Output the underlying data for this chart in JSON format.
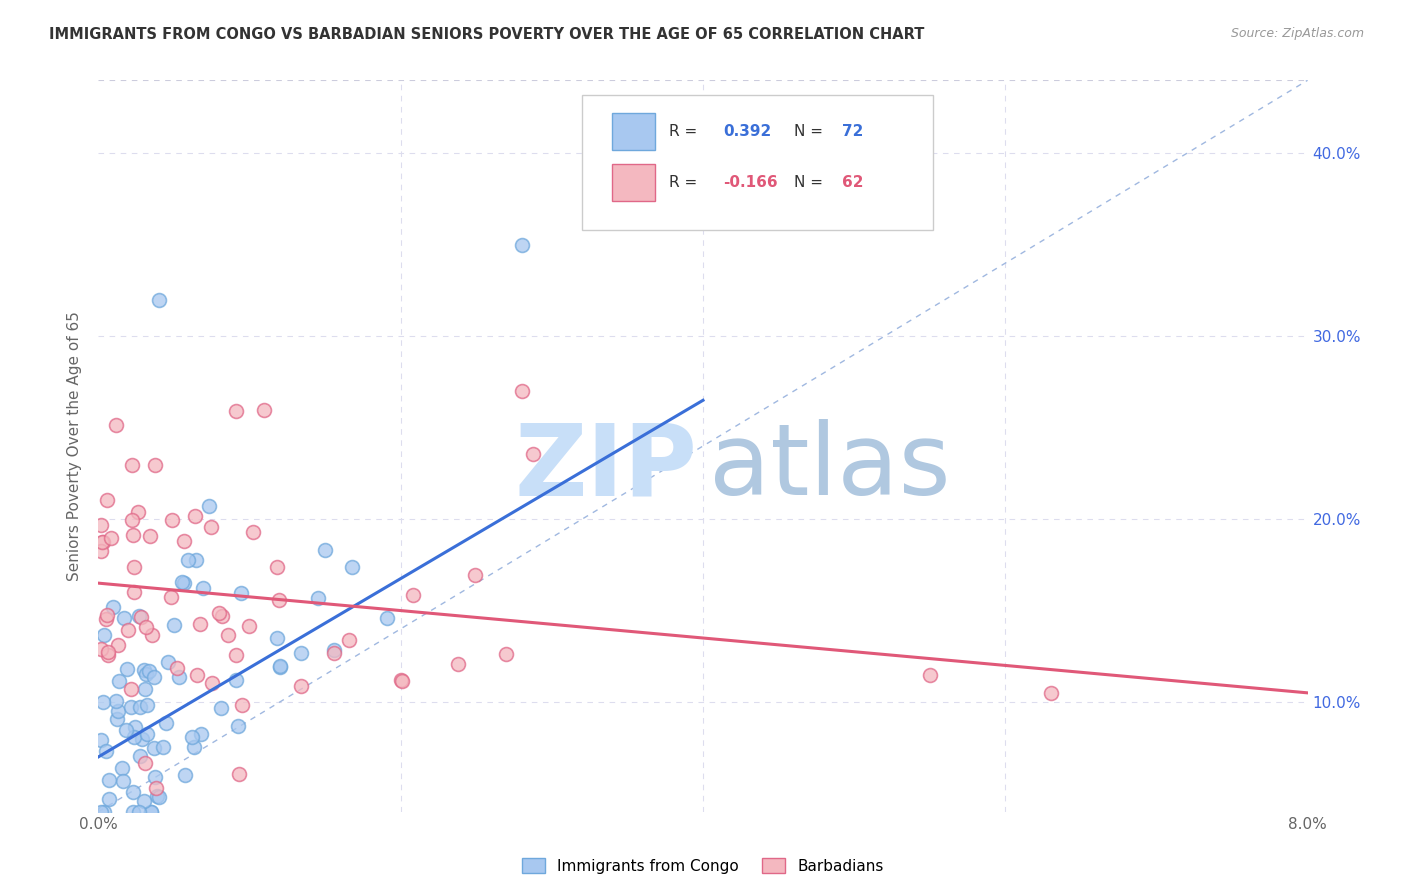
{
  "title": "IMMIGRANTS FROM CONGO VS BARBADIAN SENIORS POVERTY OVER THE AGE OF 65 CORRELATION CHART",
  "source": "Source: ZipAtlas.com",
  "ylabel": "Seniors Poverty Over the Age of 65",
  "xlim": [
    0.0,
    0.08
  ],
  "ylim": [
    0.04,
    0.44
  ],
  "x_ticks": [
    0.0,
    0.02,
    0.04,
    0.06,
    0.08
  ],
  "x_tick_labels": [
    "0.0%",
    "",
    "",
    "",
    "8.0%"
  ],
  "y_ticks": [
    0.1,
    0.2,
    0.3,
    0.4
  ],
  "y_tick_labels": [
    "10.0%",
    "20.0%",
    "30.0%",
    "40.0%"
  ],
  "congo_R": 0.392,
  "congo_N": 72,
  "barbadian_R": -0.166,
  "barbadian_N": 62,
  "congo_color_fill": "#a8c8f0",
  "congo_color_edge": "#6fa8dc",
  "barbadian_color_fill": "#f4b8c0",
  "barbadian_color_edge": "#e06888",
  "congo_line_color": "#3a6fd8",
  "barbadian_line_color": "#e05878",
  "dashed_line_color": "#a0b8e0",
  "grid_color": "#ddddee",
  "top_border_color": "#ccccdd",
  "watermark_zip_color": "#c8dff8",
  "watermark_atlas_color": "#b0c8e0",
  "congo_line_x0": 0.0,
  "congo_line_y0": 0.07,
  "congo_line_x1": 0.04,
  "congo_line_y1": 0.265,
  "barb_line_x0": 0.0,
  "barb_line_y0": 0.165,
  "barb_line_x1": 0.08,
  "barb_line_y1": 0.105,
  "legend_label1": "Immigrants from Congo",
  "legend_label2": "Barbadians"
}
